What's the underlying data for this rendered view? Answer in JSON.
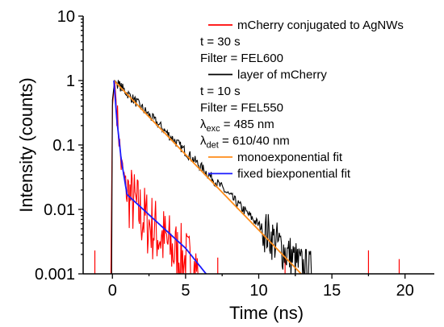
{
  "chart_data": {
    "type": "line",
    "xlabel": "Time (ns)",
    "ylabel": "Intensity (counts)",
    "xlim": [
      -2,
      22
    ],
    "ylim": [
      0.001,
      10
    ],
    "yscale": "log",
    "x_ticks": [
      0,
      5,
      10,
      15,
      20
    ],
    "x_tick_labels": [
      "0",
      "5",
      "10",
      "15",
      "20"
    ],
    "y_ticks": [
      0.001,
      0.01,
      0.1,
      1,
      10
    ],
    "y_tick_labels": [
      "0.001",
      "0.01",
      "0.1",
      "1",
      "10"
    ],
    "legend_position": "top-right",
    "legend_lines": [
      {
        "kind": "series",
        "color": "#ff0000",
        "text": "mCherry conjugated to AgNWs"
      },
      {
        "kind": "text",
        "text": "t = 30 s"
      },
      {
        "kind": "text",
        "text": "Filter = FEL600"
      },
      {
        "kind": "series",
        "color": "#000000",
        "text": "layer of mCherry"
      },
      {
        "kind": "text",
        "text": "t = 10 s"
      },
      {
        "kind": "text",
        "text": "Filter = FEL550"
      },
      {
        "kind": "sub",
        "main": "λ",
        "sub": "exc",
        "rest": " = 485 nm"
      },
      {
        "kind": "sub",
        "main": "λ",
        "sub": "det",
        "rest": " = 610/40 nm"
      },
      {
        "kind": "series",
        "color": "#ff8c1a",
        "text": "monoexponential fit"
      },
      {
        "kind": "series",
        "color": "#1a1aff",
        "text": "fixed biexponential fit"
      }
    ],
    "series": [
      {
        "name": "mCherry conjugated to AgNWs",
        "color": "#ff0000",
        "style": "noisy",
        "points": [
          [
            -2,
            0.001
          ],
          [
            -0.1,
            0.001
          ],
          [
            0,
            0.4
          ],
          [
            0.15,
            1.0
          ],
          [
            0.3,
            0.35
          ],
          [
            0.6,
            0.05
          ],
          [
            1,
            0.018
          ],
          [
            2,
            0.008
          ],
          [
            3,
            0.0045
          ],
          [
            4,
            0.0025
          ],
          [
            5,
            0.0015
          ],
          [
            6,
            0.001
          ],
          [
            13,
            0.001
          ]
        ],
        "noise_spikes_x": [
          -1.2,
          7.2,
          11.8,
          17.5,
          19.6
        ]
      },
      {
        "name": "layer of mCherry",
        "color": "#000000",
        "style": "noisy",
        "points": [
          [
            -2,
            0.001
          ],
          [
            -0.05,
            0.001
          ],
          [
            0,
            0.5
          ],
          [
            0.15,
            1.0
          ],
          [
            13,
            0.0012
          ],
          [
            14,
            0.001
          ],
          [
            18,
            0.001
          ],
          [
            22,
            0.001
          ]
        ]
      },
      {
        "name": "monoexponential fit",
        "color": "#ff8c1a",
        "style": "smooth",
        "points": [
          [
            0.1,
            1.0
          ],
          [
            12.9,
            0.001
          ]
        ]
      },
      {
        "name": "fixed biexponential fit",
        "color": "#1a1aff",
        "style": "smooth",
        "points": [
          [
            0.1,
            1.0
          ],
          [
            0.3,
            0.25
          ],
          [
            0.6,
            0.06
          ],
          [
            1.0,
            0.017
          ],
          [
            3,
            0.0065
          ],
          [
            5,
            0.0025
          ],
          [
            6.4,
            0.001
          ]
        ]
      }
    ]
  }
}
